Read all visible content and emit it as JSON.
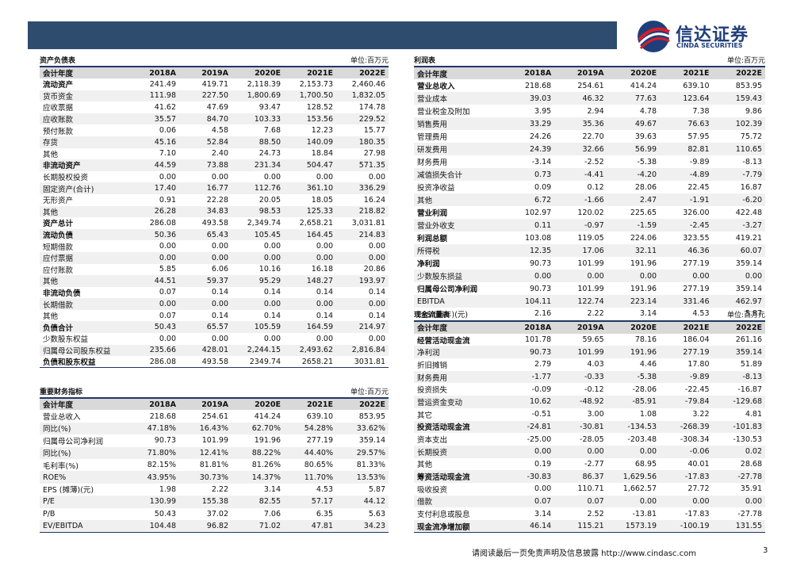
{
  "header": {
    "logo_cn": "信达证券",
    "logo_en": "CINDA SECURITIES"
  },
  "tables": [
    {
      "title": "资产负债表",
      "unit": "单位:百万元",
      "columns": [
        "会计年度",
        "2018A",
        "2019A",
        "2020E",
        "2021E",
        "2022E"
      ],
      "rows": [
        {
          "label": "流动资产",
          "values": [
            "241.49",
            "419.71",
            "2,118.39",
            "2,153.73",
            "2,460.46"
          ],
          "bold": true
        },
        {
          "label": "货币资金",
          "values": [
            "111.98",
            "227.50",
            "1,800.69",
            "1,700.50",
            "1,832.05"
          ]
        },
        {
          "label": "应收票据",
          "values": [
            "41.62",
            "47.69",
            "93.47",
            "128.52",
            "174.78"
          ]
        },
        {
          "label": "应收账款",
          "values": [
            "35.57",
            "84.70",
            "103.33",
            "153.56",
            "229.52"
          ]
        },
        {
          "label": "预付账款",
          "values": [
            "0.06",
            "4.58",
            "7.68",
            "12.23",
            "15.77"
          ]
        },
        {
          "label": "存货",
          "values": [
            "45.16",
            "52.84",
            "88.50",
            "140.09",
            "180.35"
          ]
        },
        {
          "label": "其他",
          "values": [
            "7.10",
            "2.40",
            "24.73",
            "18.84",
            "27.98"
          ]
        },
        {
          "label": "非流动资产",
          "values": [
            "44.59",
            "73.88",
            "231.34",
            "504.47",
            "571.35"
          ],
          "bold": true
        },
        {
          "label": "长期股权投资",
          "values": [
            "0.00",
            "0.00",
            "0.00",
            "0.00",
            "0.00"
          ]
        },
        {
          "label": "固定资产(合计)",
          "values": [
            "17.40",
            "16.77",
            "112.76",
            "361.10",
            "336.29"
          ]
        },
        {
          "label": "无形资产",
          "values": [
            "0.91",
            "22.28",
            "20.05",
            "18.05",
            "16.24"
          ]
        },
        {
          "label": "其他",
          "values": [
            "26.28",
            "34.83",
            "98.53",
            "125.33",
            "218.82"
          ]
        },
        {
          "label": "资产总计",
          "values": [
            "286.08",
            "493.58",
            "2,349.74",
            "2,658.21",
            "3,031.81"
          ],
          "bold": true
        },
        {
          "label": "流动负债",
          "values": [
            "50.36",
            "65.43",
            "105.45",
            "164.45",
            "214.83"
          ],
          "bold": true
        },
        {
          "label": "短期借款",
          "values": [
            "0.00",
            "0.00",
            "0.00",
            "0.00",
            "0.00"
          ]
        },
        {
          "label": "应付票据",
          "values": [
            "0.00",
            "0.00",
            "0.00",
            "0.00",
            "0.00"
          ]
        },
        {
          "label": "应付账款",
          "values": [
            "5.85",
            "6.06",
            "10.16",
            "16.18",
            "20.86"
          ]
        },
        {
          "label": "其他",
          "values": [
            "44.51",
            "59.37",
            "95.29",
            "148.27",
            "193.97"
          ]
        },
        {
          "label": "非流动负债",
          "values": [
            "0.07",
            "0.14",
            "0.14",
            "0.14",
            "0.14"
          ],
          "bold": true
        },
        {
          "label": "长期借款",
          "values": [
            "0.00",
            "0.00",
            "0.00",
            "0.00",
            "0.00"
          ]
        },
        {
          "label": "其他",
          "values": [
            "0.07",
            "0.14",
            "0.14",
            "0.14",
            "0.14"
          ]
        },
        {
          "label": "负债合计",
          "values": [
            "50.43",
            "65.57",
            "105.59",
            "164.59",
            "214.97"
          ],
          "bold": true
        },
        {
          "label": "少数股东权益",
          "values": [
            "0.00",
            "0.00",
            "0.00",
            "0.00",
            "0.00"
          ]
        },
        {
          "label": "归属母公司股东权益",
          "values": [
            "235.66",
            "428.01",
            "2,244.15",
            "2,493.62",
            "2,816.84"
          ]
        },
        {
          "label": "负债和股东权益",
          "values": [
            "286.08",
            "493.58",
            "2349.74",
            "2658.21",
            "3031.81"
          ],
          "bold": true
        }
      ]
    },
    {
      "title": "重要财务指标",
      "unit": "单位:百万元",
      "columns": [
        "会计年度",
        "2018A",
        "2019A",
        "2020E",
        "2021E",
        "2022E"
      ],
      "rows": [
        {
          "label": "营业总收入",
          "values": [
            "218.68",
            "254.61",
            "414.24",
            "639.10",
            "853.95"
          ]
        },
        {
          "label": "同比(%)",
          "values": [
            "47.18%",
            "16.43%",
            "62.70%",
            "54.28%",
            "33.62%"
          ]
        },
        {
          "label": "归属母公司净利润",
          "values": [
            "90.73",
            "101.99",
            "191.96",
            "277.19",
            "359.14"
          ]
        },
        {
          "label": "同比(%)",
          "values": [
            "71.80%",
            "12.41%",
            "88.22%",
            "44.40%",
            "29.57%"
          ]
        },
        {
          "label": "毛利率(%)",
          "values": [
            "82.15%",
            "81.81%",
            "81.26%",
            "80.65%",
            "81.33%"
          ]
        },
        {
          "label": "ROE%",
          "values": [
            "43.95%",
            "30.73%",
            "14.37%",
            "11.70%",
            "13.53%"
          ]
        },
        {
          "label": "EPS (摊薄)(元)",
          "values": [
            "1.98",
            "2.22",
            "3.14",
            "4.53",
            "5.87"
          ]
        },
        {
          "label": "P/E",
          "values": [
            "130.99",
            "155.38",
            "82.55",
            "57.17",
            "44.12"
          ]
        },
        {
          "label": "P/B",
          "values": [
            "50.43",
            "37.02",
            "7.06",
            "6.35",
            "5.63"
          ]
        },
        {
          "label": "EV/EBITDA",
          "values": [
            "104.48",
            "96.82",
            "71.02",
            "47.81",
            "34.23"
          ]
        }
      ]
    },
    {
      "title": "利润表",
      "unit": "单位:百万元",
      "columns": [
        "会计年度",
        "2018A",
        "2019A",
        "2020E",
        "2021E",
        "2022E"
      ],
      "rows": [
        {
          "label": "营业总收入",
          "values": [
            "218.68",
            "254.61",
            "414.24",
            "639.10",
            "853.95"
          ],
          "bold": true
        },
        {
          "label": "营业成本",
          "values": [
            "39.03",
            "46.32",
            "77.63",
            "123.64",
            "159.43"
          ]
        },
        {
          "label": "营业税金及附加",
          "values": [
            "3.95",
            "2.94",
            "4.78",
            "7.38",
            "9.86"
          ]
        },
        {
          "label": "销售费用",
          "values": [
            "33.29",
            "35.36",
            "49.67",
            "76.63",
            "102.39"
          ]
        },
        {
          "label": "管理费用",
          "values": [
            "24.26",
            "22.70",
            "39.63",
            "57.95",
            "75.72"
          ]
        },
        {
          "label": "研发费用",
          "values": [
            "24.39",
            "32.66",
            "56.99",
            "82.81",
            "110.65"
          ]
        },
        {
          "label": "财务费用",
          "values": [
            "-3.14",
            "-2.52",
            "-5.38",
            "-9.89",
            "-8.13"
          ]
        },
        {
          "label": "减值损失合计",
          "values": [
            "0.73",
            "-4.41",
            "-4.20",
            "-4.89",
            "-7.79"
          ]
        },
        {
          "label": "投资净收益",
          "values": [
            "0.09",
            "0.12",
            "28.06",
            "22.45",
            "16.87"
          ]
        },
        {
          "label": "其他",
          "values": [
            "6.72",
            "-1.66",
            "2.47",
            "-1.91",
            "-6.20"
          ]
        },
        {
          "label": "营业利润",
          "values": [
            "102.97",
            "120.02",
            "225.65",
            "326.00",
            "422.48"
          ],
          "bold": true
        },
        {
          "label": "营业外收支",
          "values": [
            "0.11",
            "-0.97",
            "-1.59",
            "-2.45",
            "-3.27"
          ]
        },
        {
          "label": "利润总额",
          "values": [
            "103.08",
            "119.05",
            "224.06",
            "323.55",
            "419.21"
          ],
          "bold": true
        },
        {
          "label": "所得税",
          "values": [
            "12.35",
            "17.06",
            "32.11",
            "46.36",
            "60.07"
          ]
        },
        {
          "label": "净利润",
          "values": [
            "90.73",
            "101.99",
            "191.96",
            "277.19",
            "359.14"
          ],
          "bold": true
        },
        {
          "label": "少数股东损益",
          "values": [
            "0.00",
            "0.00",
            "0.00",
            "0.00",
            "0.00"
          ]
        },
        {
          "label": "归属母公司净利润",
          "values": [
            "90.73",
            "101.99",
            "191.96",
            "277.19",
            "359.14"
          ],
          "bold": true
        },
        {
          "label": "EBITDA",
          "values": [
            "104.11",
            "122.74",
            "223.14",
            "331.46",
            "462.97"
          ]
        },
        {
          "label": "EPS (当年)(元)",
          "values": [
            "2.16",
            "2.22",
            "3.14",
            "4.53",
            "5.87"
          ]
        }
      ]
    },
    {
      "title": "现金流量表",
      "unit": "单位:百万元",
      "columns": [
        "会计年度",
        "2018A",
        "2019A",
        "2020E",
        "2021E",
        "2022E"
      ],
      "rows": [
        {
          "label": "经营活动现金流",
          "values": [
            "101.78",
            "59.65",
            "78.16",
            "186.04",
            "261.16"
          ],
          "bold": true
        },
        {
          "label": "净利润",
          "values": [
            "90.73",
            "101.99",
            "191.96",
            "277.19",
            "359.14"
          ]
        },
        {
          "label": "折旧摊销",
          "values": [
            "2.79",
            "4.03",
            "4.46",
            "17.80",
            "51.89"
          ]
        },
        {
          "label": "财务费用",
          "values": [
            "-1.77",
            "-0.33",
            "-5.38",
            "-9.89",
            "-8.13"
          ]
        },
        {
          "label": "投资损失",
          "values": [
            "-0.09",
            "-0.12",
            "-28.06",
            "-22.45",
            "-16.87"
          ]
        },
        {
          "label": "营运资金变动",
          "values": [
            "10.62",
            "-48.92",
            "-85.91",
            "-79.84",
            "-129.68"
          ]
        },
        {
          "label": "其它",
          "values": [
            "-0.51",
            "3.00",
            "1.08",
            "3.22",
            "4.81"
          ]
        },
        {
          "label": "投资活动现金流",
          "values": [
            "-24.81",
            "-30.81",
            "-134.53",
            "-268.39",
            "-101.83"
          ],
          "bold": true
        },
        {
          "label": "资本支出",
          "values": [
            "-25.00",
            "-28.05",
            "-203.48",
            "-308.34",
            "-130.53"
          ]
        },
        {
          "label": "长期投资",
          "values": [
            "0.00",
            "0.00",
            "0.00",
            "-0.06",
            "0.02"
          ]
        },
        {
          "label": "其他",
          "values": [
            "0.19",
            "-2.77",
            "68.95",
            "40.01",
            "28.68"
          ]
        },
        {
          "label": "筹资活动现金流",
          "values": [
            "-30.83",
            "86.37",
            "1,629.56",
            "-17.83",
            "-27.78"
          ],
          "bold": true
        },
        {
          "label": "吸收投资",
          "values": [
            "0.00",
            "110.71",
            "1,662.57",
            "27.72",
            "35.91"
          ]
        },
        {
          "label": "借款",
          "values": [
            "0.07",
            "0.07",
            "0.00",
            "0.00",
            "0.00"
          ]
        },
        {
          "label": "支付利息或股息",
          "values": [
            "3.14",
            "2.52",
            "-13.81",
            "-17.83",
            "-27.78"
          ]
        },
        {
          "label": "现金流净增加额",
          "values": [
            "46.14",
            "115.21",
            "1573.19",
            "-100.19",
            "131.55"
          ],
          "bold": true
        }
      ]
    }
  ],
  "footer": {
    "text": "请阅读最后一页免责声明及信息披露 http://www.cindasc.com",
    "page": "3"
  }
}
